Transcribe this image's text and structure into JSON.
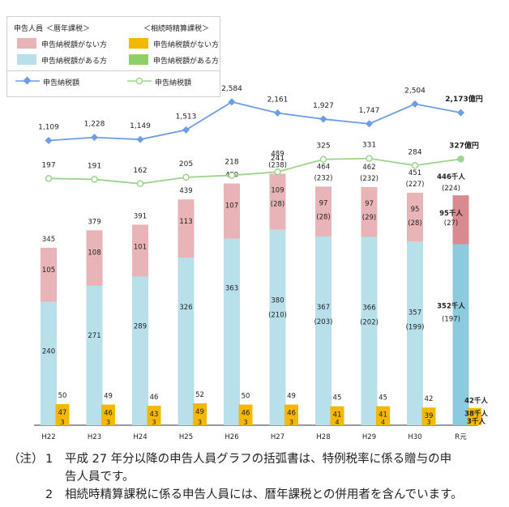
{
  "legend": {
    "title": "申告人員",
    "annual": "＜暦年課税＞",
    "settlement": "＜相続時精算課税＞",
    "annual_no_tax": "申告納税額がない方",
    "annual_tax": "申告納税額がある方",
    "settle_no_tax": "申告納税額がない方",
    "settle_tax": "申告納税額がある方",
    "annual_line": "申告納税額",
    "settle_line": "申告納税額"
  },
  "colors": {
    "annual_no_tax": "#e8b4b8",
    "annual_tax": "#b7e0ea",
    "settle_no_tax": "#f5b800",
    "settle_tax": "#8fcf6a",
    "annual_line": "#6d9ee3",
    "settle_line": "#9bd48a",
    "highlight_no_tax": "#d98a8f",
    "highlight_tax": "#8ccbdd"
  },
  "chart_data": {
    "type": "bar",
    "categories": [
      "H22",
      "H23",
      "H24",
      "H25",
      "H26",
      "H27",
      "H28",
      "H29",
      "H30",
      "R元"
    ],
    "annual_no_tax": [
      105,
      108,
      101,
      113,
      107,
      109,
      97,
      97,
      95,
      95
    ],
    "annual_no_tax_special": [
      "",
      "",
      "",
      "",
      "",
      "(28)",
      "(28)",
      "(29)",
      "(28)",
      "(27)"
    ],
    "annual_tax": [
      240,
      271,
      289,
      326,
      363,
      380,
      367,
      366,
      357,
      352
    ],
    "annual_tax_special": [
      "",
      "",
      "",
      "",
      "",
      "(210)",
      "(203)",
      "(202)",
      "(199)",
      "(197)"
    ],
    "annual_total": [
      345,
      379,
      391,
      439,
      470,
      489,
      464,
      462,
      451,
      446
    ],
    "annual_total_special": [
      "",
      "",
      "",
      "",
      "",
      "(238)",
      "(232)",
      "(232)",
      "(227)",
      "(224)"
    ],
    "settle_no_tax": [
      47,
      46,
      43,
      49,
      46,
      46,
      41,
      41,
      39,
      38
    ],
    "settle_tax": [
      3,
      3,
      3,
      3,
      3,
      3,
      4,
      4,
      3,
      3
    ],
    "settle_total": [
      50,
      49,
      46,
      52,
      50,
      49,
      45,
      45,
      42,
      42
    ],
    "annual_amount": [
      1109,
      1228,
      1149,
      1513,
      2584,
      2161,
      1927,
      1747,
      2504,
      2173
    ],
    "annual_amount_labels": [
      "1,109",
      "1,228",
      "1,149",
      "1,513",
      "2,584",
      "2,161",
      "1,927",
      "1,747",
      "2,504",
      "2,173億円"
    ],
    "settle_amount": [
      197,
      191,
      162,
      205,
      218,
      241,
      325,
      331,
      284,
      327
    ],
    "settle_amount_labels": [
      "197",
      "191",
      "162",
      "205",
      "218",
      "241",
      "325",
      "331",
      "284",
      "327億円"
    ],
    "last_labels": {
      "annual_total": "446千人",
      "annual_no_tax": "95千人",
      "annual_tax": "352千人",
      "settle_total": "42千人",
      "settle_no_tax": "38千人",
      "settle_tax": "3千人"
    }
  },
  "notes": [
    {
      "mark": "（注）",
      "num": "1",
      "text": "平成 27 年分以降の申告人員グラフの括弧書は、特例税率に係る贈与の申",
      "cont": "告人員です。"
    },
    {
      "mark": "",
      "num": "2",
      "text": "相続時精算課税に係る申告人員には、暦年課税との併用者を含んでいます。",
      "cont": ""
    }
  ]
}
